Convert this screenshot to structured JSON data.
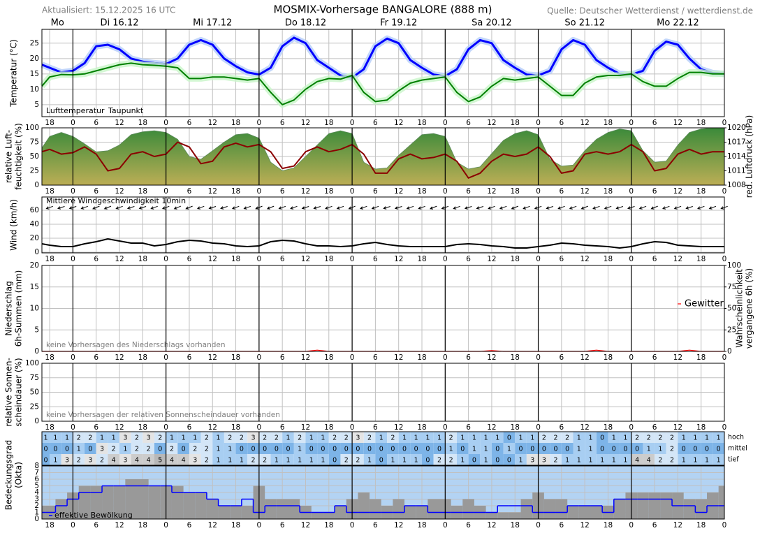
{
  "header": {
    "updated": "Aktualisiert: 15.12.2025 16 UTC",
    "title": "MOSMIX-Vorhersage BANGALORE (888 m)",
    "source": "Quelle: Deutscher Wetterdienst / wetterdienst.de"
  },
  "time_axis": {
    "days": [
      "Mo",
      "Di 16.12",
      "Mi 17.12",
      "Do 18.12",
      "Fr 19.12",
      "Sa 20.12",
      "So 21.12",
      "Mo 22.12"
    ],
    "xlim": [
      16,
      192
    ],
    "xticks": [
      18,
      {
        "value": 24,
        "label": "0"
      },
      {
        "value": 30,
        "label": "6"
      },
      {
        "value": 36,
        "label": "12"
      },
      {
        "value": 42,
        "label": "18"
      },
      {
        "value": 48,
        "label": "0"
      },
      {
        "value": 54,
        "label": "6"
      },
      {
        "value": 60,
        "label": "12"
      },
      {
        "value": 66,
        "label": "18"
      },
      {
        "value": 72,
        "label": "0"
      },
      {
        "value": 78,
        "label": "6"
      },
      {
        "value": 84,
        "label": "12"
      },
      {
        "value": 90,
        "label": "18"
      },
      {
        "value": 96,
        "label": "0"
      },
      {
        "value": 102,
        "label": "6"
      },
      {
        "value": 108,
        "label": "12"
      },
      {
        "value": 114,
        "label": "18"
      },
      {
        "value": 120,
        "label": "0"
      },
      {
        "value": 126,
        "label": "6"
      },
      {
        "value": 132,
        "label": "12"
      },
      {
        "value": 138,
        "label": "18"
      },
      {
        "value": 144,
        "label": "0"
      },
      {
        "value": 150,
        "label": "6"
      },
      {
        "value": 156,
        "label": "12"
      },
      {
        "value": 162,
        "label": "18"
      },
      {
        "value": 168,
        "label": "0"
      },
      {
        "value": 174,
        "label": "6"
      },
      {
        "value": 180,
        "label": "12"
      },
      {
        "value": 186,
        "label": "18"
      },
      {
        "value": 192,
        "label": "0"
      }
    ],
    "x": [
      16,
      18,
      21,
      24,
      27,
      30,
      33,
      36,
      39,
      42,
      45,
      48,
      51,
      54,
      57,
      60,
      63,
      66,
      69,
      72,
      75,
      78,
      81,
      84,
      87,
      90,
      93,
      96,
      99,
      102,
      105,
      108,
      111,
      114,
      117,
      120,
      123,
      126,
      129,
      132,
      135,
      138,
      141,
      144,
      147,
      150,
      153,
      156,
      159,
      162,
      165,
      168,
      171,
      174,
      177,
      180,
      183,
      186,
      189,
      192
    ]
  },
  "chart_data": [
    {
      "type": "line",
      "ylabel": [
        "Temperatur (°C)"
      ],
      "ylim": [
        1.1,
        29.5
      ],
      "yticks": [
        5,
        10,
        15,
        20,
        25
      ],
      "series": [
        {
          "name": "Lufttemperatur",
          "color": "#0000ff",
          "halo": "#b4cdfa",
          "values": [
            18,
            17,
            15.5,
            16,
            18.5,
            24,
            24.5,
            23,
            20,
            19,
            18.5,
            18.2,
            20,
            24.5,
            26,
            24.5,
            20,
            17.5,
            15.5,
            14.8,
            17,
            24,
            26.8,
            25,
            19.5,
            17,
            14.5,
            13.8,
            16.5,
            24,
            26.5,
            25,
            19.5,
            17,
            14.8,
            14.3,
            16.5,
            23,
            26,
            25,
            19.5,
            17,
            14.8,
            14.5,
            16,
            23,
            26,
            24.5,
            19.5,
            17,
            15,
            14.8,
            16,
            22.5,
            25.5,
            24.5,
            20,
            16.5,
            15.3,
            15
          ]
        },
        {
          "name": "Taupunkt",
          "color": "#008000",
          "halo": "#c8f5c8",
          "values": [
            11,
            14,
            14.8,
            14.7,
            15,
            16,
            17,
            18,
            18.5,
            18,
            17.8,
            17.5,
            17,
            13.5,
            13.5,
            14,
            14,
            13.5,
            13,
            13.5,
            9,
            5,
            6.5,
            10,
            12.5,
            13.5,
            13.3,
            14.5,
            9,
            6,
            6.5,
            9.5,
            12,
            13,
            13.5,
            14,
            9,
            6,
            7.5,
            11,
            13.5,
            13,
            13.5,
            14,
            11,
            8,
            8,
            12,
            14,
            14.5,
            14.5,
            15,
            12.5,
            11,
            11,
            13.5,
            15.5,
            15.5,
            15,
            15
          ]
        }
      ]
    },
    {
      "type": "area",
      "ylabel": [
        "relative Luft-",
        "feuchtigkeit (%)"
      ],
      "y2label": [
        "red. Luftdruck (hPa)"
      ],
      "y2label_color": "#b00000",
      "ylim": [
        0,
        100
      ],
      "yticks": [
        0,
        25,
        50,
        75,
        100
      ],
      "y2lim": [
        1008,
        1020
      ],
      "y2ticks": [
        1008,
        1011,
        1014,
        1017,
        1020
      ],
      "series": [
        {
          "color": "#3a8a3a",
          "gradient_to": "#bcae55",
          "area": true,
          "values": [
            65,
            85,
            92,
            85,
            72,
            58,
            60,
            70,
            88,
            93,
            95,
            92,
            80,
            50,
            45,
            60,
            75,
            88,
            90,
            82,
            40,
            25,
            30,
            50,
            70,
            90,
            95,
            90,
            40,
            28,
            30,
            52,
            70,
            88,
            90,
            85,
            40,
            28,
            32,
            55,
            78,
            90,
            95,
            88,
            45,
            33,
            35,
            60,
            80,
            92,
            98,
            95,
            60,
            40,
            42,
            70,
            92,
            98,
            100,
            100
          ]
        },
        {
          "color": "#8b0000",
          "axis": "y2",
          "values": [
            1015,
            1015.5,
            1014.5,
            1014.8,
            1016,
            1014.5,
            1011,
            1011.5,
            1014.5,
            1015,
            1014,
            1014.5,
            1017,
            1016,
            1012.5,
            1013,
            1016,
            1016.8,
            1016,
            1016.5,
            1015,
            1011.5,
            1012,
            1015,
            1016,
            1015,
            1015.5,
            1016.5,
            1014.5,
            1010.5,
            1010.5,
            1013.5,
            1014.5,
            1013.5,
            1013.8,
            1014.5,
            1013,
            1009.5,
            1010.5,
            1013,
            1014.5,
            1014,
            1014.5,
            1016,
            1014,
            1010.5,
            1011,
            1014.5,
            1015,
            1014.5,
            1015,
            1016.5,
            1015,
            1011,
            1011.5,
            1014.5,
            1015.5,
            1014.5,
            1015,
            1015
          ]
        }
      ]
    },
    {
      "type": "wind",
      "ylabel": [
        "Wind (km/h)"
      ],
      "ylim": [
        -1,
        79
      ],
      "yticks": [
        0,
        20,
        40,
        60
      ],
      "series": [
        {
          "name": "Mittlere Windgeschwindigkeit 10min",
          "color": "#000000",
          "values": [
            12,
            10,
            8,
            8,
            12,
            15,
            19,
            16,
            13,
            13,
            9,
            11,
            15,
            17,
            16,
            13,
            12,
            9,
            8,
            9,
            15,
            17,
            16,
            12,
            9,
            9,
            8,
            9,
            12,
            14,
            11,
            9,
            8,
            8,
            8,
            8,
            11,
            12,
            11,
            9,
            8,
            6,
            6,
            8,
            10,
            13,
            12,
            10,
            9,
            8,
            6,
            8,
            12,
            15,
            14,
            10,
            9,
            8,
            8,
            8
          ]
        }
      ],
      "wind_direction": [
        70,
        70,
        72,
        72,
        70,
        68,
        68,
        70,
        72,
        72,
        70,
        70,
        68,
        68,
        70,
        72,
        72,
        70,
        70,
        68,
        68,
        70,
        70,
        72,
        72,
        70,
        70,
        68,
        70,
        70,
        72,
        72,
        70,
        70,
        68,
        70,
        70,
        72,
        72,
        70,
        70,
        68,
        70,
        70,
        72,
        70,
        70,
        68,
        70,
        70,
        72,
        72,
        70,
        68,
        70,
        70,
        72,
        70,
        70,
        70
      ]
    },
    {
      "type": "bar",
      "ylabel": [
        "Niederschlag",
        "6h-Summen (mm)"
      ],
      "y2label": [
        "Wahrscheinlichkeit",
        "vergangene 6h (%)"
      ],
      "ylim": [
        0,
        20
      ],
      "yticks": [
        0,
        5,
        10,
        15,
        20
      ],
      "y2lim": [
        0,
        100
      ],
      "y2ticks": [
        0,
        25,
        50,
        75,
        100
      ],
      "note": "keine Vorhersagen des Niederschlags vorhanden",
      "series": [
        {
          "name": "Gewitter",
          "color": "#ff0000",
          "axis": "y2",
          "values": [
            0,
            0,
            0,
            0,
            0,
            0,
            0,
            0,
            0,
            0,
            0,
            0,
            0,
            0,
            0,
            0,
            0,
            0,
            0,
            0,
            0,
            0,
            0,
            0,
            1.5,
            0,
            0,
            0,
            0,
            0,
            0,
            0,
            0,
            0,
            0,
            0,
            0,
            0,
            0,
            1,
            0,
            0,
            0,
            0,
            0,
            0,
            0,
            0,
            1.5,
            0,
            0,
            0,
            0,
            0,
            0,
            0,
            1.5,
            0,
            0,
            0
          ]
        }
      ]
    },
    {
      "type": "bar",
      "ylabel": [
        "relative Sonnen-",
        "scheindauer (%)"
      ],
      "ylim": [
        0,
        100
      ],
      "yticks": [
        0,
        25,
        50,
        75,
        100
      ],
      "note": "keine Vorhersagen der relativen Sonnenscheindauer vorhanden",
      "series": []
    },
    {
      "type": "heatmap",
      "colors": [
        "#7db4e8",
        "#a8cef2",
        "#d4e6f7",
        "#e4e4e4",
        "#cccccc",
        "#b8b8b8",
        "#a0a0a0",
        "#888888",
        "#707070"
      ],
      "rows": [
        {
          "name": "hoch",
          "values": [
            1,
            1,
            1,
            2,
            2,
            1,
            1,
            3,
            2,
            3,
            2,
            1,
            1,
            1,
            2,
            1,
            2,
            2,
            3,
            2,
            2,
            1,
            2,
            1,
            1,
            2,
            2,
            3,
            2,
            1,
            2,
            1,
            1,
            1,
            1,
            2,
            1,
            1,
            1,
            1,
            0,
            1,
            1,
            2,
            2,
            2,
            1,
            1,
            0,
            1,
            1,
            2,
            2,
            2,
            2,
            1,
            1,
            1,
            1
          ]
        },
        {
          "name": "mittel",
          "values": [
            0,
            0,
            0,
            1,
            0,
            3,
            2,
            1,
            2,
            2,
            0,
            2,
            0,
            2,
            2,
            1,
            1,
            0,
            0,
            0,
            0,
            0,
            1,
            0,
            0,
            0,
            0,
            0,
            0,
            0,
            0,
            0,
            0,
            0,
            0,
            1,
            0,
            1,
            1,
            0,
            1,
            0,
            0,
            0,
            0,
            0,
            1,
            1,
            0,
            0,
            0,
            0,
            1,
            1,
            2,
            0,
            0,
            0,
            0
          ]
        },
        {
          "name": "tief",
          "values": [
            0,
            1,
            3,
            2,
            3,
            2,
            4,
            3,
            4,
            4,
            5,
            4,
            4,
            3,
            2,
            1,
            1,
            1,
            2,
            2,
            1,
            1,
            1,
            1,
            1,
            0,
            2,
            2,
            1,
            0,
            1,
            1,
            1,
            0,
            2,
            2,
            1,
            0,
            1,
            0,
            0,
            1,
            3,
            3,
            2,
            1,
            1,
            1,
            1,
            1,
            1,
            4,
            4,
            2,
            2,
            1,
            1,
            1,
            1
          ]
        }
      ]
    },
    {
      "type": "step",
      "ylabel": [
        "Bedeckungsgrad",
        "(Okta)"
      ],
      "ylim": [
        0,
        8
      ],
      "yticks": [
        0,
        1,
        2,
        3,
        4,
        5,
        6,
        7,
        8
      ],
      "series": [
        {
          "color": "#999999",
          "area": true,
          "values": [
            2,
            2,
            3,
            4,
            5,
            5,
            5,
            5,
            6,
            6,
            5,
            5,
            5,
            4,
            4,
            3,
            2,
            2,
            2,
            5,
            3,
            3,
            3,
            2,
            1,
            1,
            2,
            3,
            4,
            3,
            2,
            3,
            2,
            2,
            3,
            3,
            2,
            3,
            2,
            1,
            1,
            1,
            3,
            4,
            3,
            3,
            2,
            2,
            2,
            2,
            3,
            4,
            4,
            4,
            4,
            4,
            3,
            3,
            4,
            5
          ]
        },
        {
          "name": "effektive Bewölkung",
          "color": "#0000ff",
          "values": [
            1,
            1,
            2,
            3,
            4,
            4,
            5,
            5,
            5,
            5,
            5,
            5,
            4,
            4,
            4,
            3,
            2,
            2,
            3,
            1,
            2,
            2,
            2,
            1,
            1,
            1,
            2,
            1,
            1,
            1,
            1,
            1,
            2,
            2,
            1,
            1,
            1,
            1,
            1,
            1,
            2,
            2,
            2,
            1,
            1,
            1,
            2,
            2,
            2,
            1,
            3,
            3,
            3,
            3,
            3,
            2,
            2,
            1,
            2,
            2
          ]
        }
      ]
    }
  ]
}
